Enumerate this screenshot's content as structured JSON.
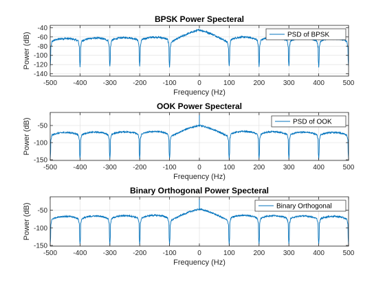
{
  "chart_data": [
    {
      "type": "line",
      "title": "BPSK Power Specteral",
      "xlabel": "Frequency (Hz)",
      "ylabel": "Power (dB)",
      "xlim": [
        -500,
        500
      ],
      "ylim": [
        -145,
        -35
      ],
      "xticks": [
        -500,
        -400,
        -300,
        -200,
        -100,
        0,
        100,
        200,
        300,
        400,
        500
      ],
      "yticks": [
        -140,
        -120,
        -100,
        -80,
        -60,
        -40
      ],
      "grid": true,
      "legend_position": "top-right",
      "series": [
        {
          "name": "PSD of BPSK",
          "color": "#0072BD",
          "shape": "sinc-squared spectrum: main lobe peak about -45 dB at 0 Hz, side-lobe peaks falling from about -55 to -65 dB, nulls near -125 dB every 100 Hz",
          "peak_db": -45,
          "null_spacing_hz": 100,
          "null_depth_db": -125,
          "carrier_spike": false
        }
      ]
    },
    {
      "type": "line",
      "title": "OOK Power Specteral",
      "xlabel": "Frequency (Hz)",
      "ylabel": "Power (dB)",
      "xlim": [
        -500,
        500
      ],
      "ylim": [
        -152,
        -12
      ],
      "xticks": [
        -500,
        -400,
        -300,
        -200,
        -100,
        0,
        100,
        200,
        300,
        400,
        500
      ],
      "yticks": [
        -150,
        -100,
        -50
      ],
      "grid": true,
      "legend_position": "top-right",
      "series": [
        {
          "name": "PSD of OOK",
          "color": "#0072BD",
          "shape": "sinc-squared spectrum with discrete carrier component at 0 Hz: main lobe peak about -50 dB, side lobes about -63 to -70 dB, nulls near -148 dB every 100 Hz",
          "peak_db": -50,
          "null_spacing_hz": 100,
          "null_depth_db": -148,
          "carrier_spike": true,
          "carrier_peak_db": -18
        }
      ]
    },
    {
      "type": "line",
      "title": "Binary Orthogonal  Power Specteral",
      "xlabel": "Frequency (Hz)",
      "ylabel": "Power (dB)",
      "xlim": [
        -500,
        500
      ],
      "ylim": [
        -152,
        -12
      ],
      "xticks": [
        -500,
        -400,
        -300,
        -200,
        -100,
        0,
        100,
        200,
        300,
        400,
        500
      ],
      "yticks": [
        -150,
        -100,
        -50
      ],
      "grid": true,
      "legend_position": "top-right",
      "series": [
        {
          "name": "Binary Orthogonal",
          "color": "#0072BD",
          "shape": "sinc-squared spectrum with discrete carrier component at 0 Hz: main lobe peak about -47 dB, side lobes about -63 to -70 dB, nulls near -148 dB every 100 Hz",
          "peak_db": -47,
          "null_spacing_hz": 100,
          "null_depth_db": -148,
          "carrier_spike": true,
          "carrier_peak_db": -18
        }
      ]
    }
  ]
}
